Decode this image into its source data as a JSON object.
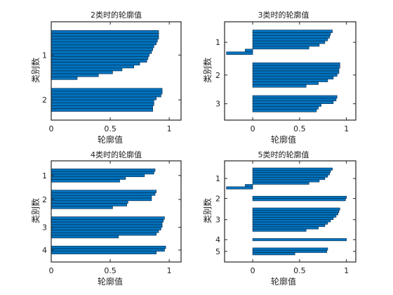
{
  "colors": {
    "bar": "#0072bd",
    "bar_edge": "#0b2a4a",
    "axis": "#262626"
  },
  "chart_data": [
    {
      "type": "bar",
      "orientation": "horizontal",
      "title": "2类时的轮廓值",
      "xlabel": "轮廓值",
      "ylabel": "类别数",
      "xlim": [
        0,
        1.1
      ],
      "xticks": [
        0,
        0.5,
        1
      ],
      "xtick_labels": [
        "0",
        "0.5",
        "1"
      ],
      "clusters": [
        {
          "label": "1",
          "values": [
            0.91,
            0.91,
            0.91,
            0.9,
            0.89,
            0.87,
            0.86,
            0.85,
            0.83,
            0.82,
            0.81,
            0.75,
            0.7,
            0.6,
            0.52,
            0.4,
            0.22
          ]
        },
        {
          "label": "2",
          "values": [
            0.94,
            0.94,
            0.93,
            0.89,
            0.87,
            0.87,
            0.86,
            0.86
          ]
        }
      ]
    },
    {
      "type": "bar",
      "orientation": "horizontal",
      "title": "3类时的轮廓值",
      "xlabel": "轮廓值",
      "ylabel": "类别数",
      "xlim": [
        -0.3,
        1.1
      ],
      "xticks": [
        0,
        0.5,
        1
      ],
      "xtick_labels": [
        "0",
        "0.5",
        "1"
      ],
      "clusters": [
        {
          "label": "1",
          "values": [
            0.85,
            0.83,
            0.82,
            0.8,
            0.77,
            0.71,
            0.6,
            -0.08,
            -0.28
          ]
        },
        {
          "label": "2",
          "values": [
            0.93,
            0.93,
            0.92,
            0.92,
            0.9,
            0.86,
            0.8,
            0.7,
            0.57
          ]
        },
        {
          "label": "3",
          "values": [
            0.9,
            0.89,
            0.86,
            0.73,
            0.7,
            0.68
          ]
        }
      ]
    },
    {
      "type": "bar",
      "orientation": "horizontal",
      "title": "4类时的轮廓值",
      "xlabel": "轮廓值",
      "ylabel": "类别数",
      "xlim": [
        0,
        1.1
      ],
      "xticks": [
        0,
        0.5,
        1
      ],
      "xtick_labels": [
        "0",
        "0.5",
        "1"
      ],
      "clusters": [
        {
          "label": "1",
          "values": [
            0.88,
            0.87,
            0.79,
            0.63,
            0.58
          ]
        },
        {
          "label": "2",
          "values": [
            0.89,
            0.88,
            0.85,
            0.85,
            0.65,
            0.64,
            0.52
          ]
        },
        {
          "label": "3",
          "values": [
            0.96,
            0.95,
            0.94,
            0.94,
            0.93,
            0.91,
            0.89,
            0.57
          ]
        },
        {
          "label": "4",
          "values": [
            0.97,
            0.96,
            0.89
          ]
        }
      ]
    },
    {
      "type": "bar",
      "orientation": "horizontal",
      "title": "5类时的轮廓值",
      "xlabel": "轮廓值",
      "ylabel": "类别数",
      "xlim": [
        -0.3,
        1.1
      ],
      "xticks": [
        0,
        0.5,
        1
      ],
      "xtick_labels": [
        "0",
        "0.5",
        "1"
      ],
      "clusters": [
        {
          "label": "1",
          "values": [
            0.85,
            0.83,
            0.82,
            0.8,
            0.77,
            0.71,
            0.6,
            -0.08,
            -0.28
          ]
        },
        {
          "label": "2",
          "values": [
            1.0,
            0.99
          ]
        },
        {
          "label": "3",
          "values": [
            0.93,
            0.92,
            0.91,
            0.89,
            0.86,
            0.83,
            0.8,
            0.77,
            0.7,
            0.57
          ]
        },
        {
          "label": "4",
          "values": [
            1.0
          ]
        },
        {
          "label": "5",
          "values": [
            0.8,
            0.79,
            0.45
          ]
        }
      ]
    }
  ]
}
